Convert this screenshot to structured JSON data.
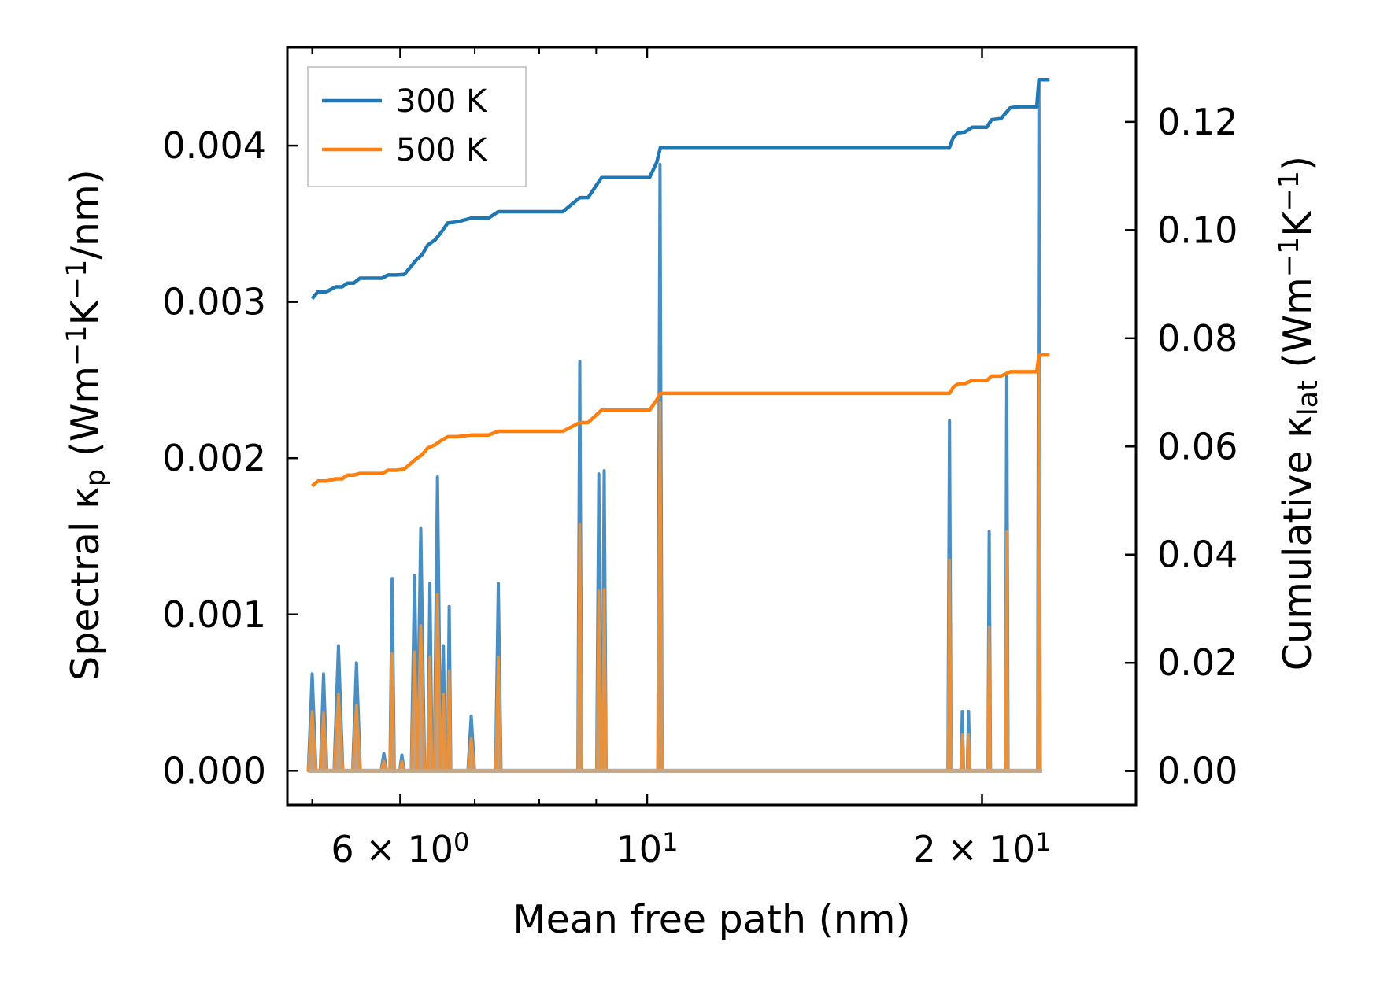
{
  "chart_data": {
    "type": "line",
    "x_scale": "log",
    "xlabel": "Mean free path (nm)",
    "ylabel_left": {
      "base": "Spectral κ",
      "sub": "p",
      "units_pre": " (Wm",
      "sup1": "−1",
      "units_mid": "K",
      "sup2": "−1",
      "units_post": "/nm)"
    },
    "ylabel_right": {
      "base": "Cumulative κ",
      "sub": "lat",
      "units_pre": " (Wm",
      "sup1": "−1",
      "units_mid": "K",
      "sup2": "−1",
      "units_post": ")"
    },
    "xlim": [
      4.75,
      27.5
    ],
    "ylim_left": [
      -0.00022,
      0.00463
    ],
    "ylim_right": [
      -0.0063,
      0.1338
    ],
    "x_ticks": [
      {
        "value": 6,
        "mantissa": "6",
        "times": "×",
        "base": "10",
        "exp": "0"
      },
      {
        "value": 10,
        "mantissa": "",
        "times": "",
        "base": "10",
        "exp": "1"
      },
      {
        "value": 20,
        "mantissa": "2",
        "times": "×",
        "base": "10",
        "exp": "1"
      }
    ],
    "x_minor_ticks": [
      5,
      7,
      8,
      9
    ],
    "y_left_ticks": [
      {
        "value": 0.0,
        "label": "0.000"
      },
      {
        "value": 0.001,
        "label": "0.001"
      },
      {
        "value": 0.002,
        "label": "0.002"
      },
      {
        "value": 0.003,
        "label": "0.003"
      },
      {
        "value": 0.004,
        "label": "0.004"
      }
    ],
    "y_right_ticks": [
      {
        "value": 0.0,
        "label": "0.00"
      },
      {
        "value": 0.02,
        "label": "0.02"
      },
      {
        "value": 0.04,
        "label": "0.04"
      },
      {
        "value": 0.06,
        "label": "0.06"
      },
      {
        "value": 0.08,
        "label": "0.08"
      },
      {
        "value": 0.1,
        "label": "0.10"
      },
      {
        "value": 0.12,
        "label": "0.12"
      }
    ],
    "legend": {
      "location": "upper-left",
      "entries": [
        "300 K",
        "500 K"
      ]
    },
    "colors": {
      "300 K": "#1f77b4",
      "500 K": "#ff7f0e",
      "spectral_300": "#4a8fc4",
      "spectral_500": "#e8913c",
      "spectral_500_fill": "#c59a74"
    },
    "series": [
      {
        "name": "300 K",
        "kind": "cumulative",
        "axis": "right",
        "x": [
          5.0,
          5.06,
          5.15,
          5.25,
          5.32,
          5.38,
          5.45,
          5.52,
          5.58,
          5.78,
          5.85,
          5.95,
          6.05,
          6.12,
          6.2,
          6.28,
          6.35,
          6.45,
          6.52,
          6.62,
          6.75,
          6.95,
          7.2,
          7.35,
          7.6,
          7.9,
          8.4,
          8.7,
          8.85,
          9.1,
          9.4,
          9.8,
          10.05,
          10.2,
          10.28,
          10.4,
          12.5,
          15.0,
          17.5,
          18.7,
          18.85,
          19.05,
          19.3,
          19.6,
          20.2,
          20.4,
          20.8,
          21.2,
          21.6,
          22.4,
          22.5,
          23.0
        ],
        "values": [
          0.0873,
          0.0886,
          0.0886,
          0.0895,
          0.0895,
          0.0902,
          0.0902,
          0.0911,
          0.0911,
          0.0911,
          0.0917,
          0.0917,
          0.0918,
          0.093,
          0.0944,
          0.0955,
          0.0972,
          0.0982,
          0.0994,
          0.1013,
          0.1015,
          0.1022,
          0.1022,
          0.1034,
          0.1034,
          0.1034,
          0.1034,
          0.106,
          0.106,
          0.1097,
          0.1097,
          0.1097,
          0.1097,
          0.1125,
          0.1153,
          0.1153,
          0.1153,
          0.1153,
          0.1153,
          0.1153,
          0.1172,
          0.118,
          0.1181,
          0.119,
          0.119,
          0.1204,
          0.1206,
          0.1226,
          0.1228,
          0.1228,
          0.1278,
          0.1278
        ]
      },
      {
        "name": "500 K",
        "kind": "cumulative",
        "axis": "right",
        "x": [
          5.0,
          5.06,
          5.15,
          5.25,
          5.32,
          5.38,
          5.45,
          5.52,
          5.58,
          5.78,
          5.85,
          5.95,
          6.05,
          6.12,
          6.2,
          6.28,
          6.35,
          6.45,
          6.52,
          6.62,
          6.75,
          6.95,
          7.2,
          7.35,
          7.6,
          7.9,
          8.4,
          8.7,
          8.85,
          9.1,
          9.4,
          9.8,
          10.05,
          10.2,
          10.28,
          10.4,
          12.5,
          15.0,
          17.5,
          18.7,
          18.85,
          19.05,
          19.3,
          19.6,
          20.2,
          20.4,
          20.8,
          21.2,
          21.6,
          22.4,
          22.5,
          23.0
        ],
        "values": [
          0.0527,
          0.0536,
          0.0536,
          0.054,
          0.054,
          0.0547,
          0.0547,
          0.055,
          0.055,
          0.055,
          0.0556,
          0.0556,
          0.0558,
          0.0567,
          0.0577,
          0.0585,
          0.0597,
          0.0603,
          0.061,
          0.0618,
          0.0618,
          0.0621,
          0.0621,
          0.0628,
          0.0628,
          0.0628,
          0.0628,
          0.0644,
          0.0644,
          0.0667,
          0.0667,
          0.0667,
          0.0667,
          0.0686,
          0.0698,
          0.0698,
          0.0698,
          0.0698,
          0.0698,
          0.0698,
          0.071,
          0.0716,
          0.0716,
          0.0722,
          0.0722,
          0.073,
          0.073,
          0.0738,
          0.0738,
          0.0738,
          0.0769,
          0.0769
        ]
      },
      {
        "name": "300 K",
        "kind": "spectral",
        "axis": "left",
        "peaks": [
          {
            "x": 5.0,
            "w": 0.035,
            "y": 0.00062
          },
          {
            "x": 5.12,
            "w": 0.03,
            "y": 0.00062
          },
          {
            "x": 5.28,
            "w": 0.04,
            "y": 0.0008
          },
          {
            "x": 5.48,
            "w": 0.035,
            "y": 0.00069
          },
          {
            "x": 5.8,
            "w": 0.025,
            "y": 0.00011
          },
          {
            "x": 5.9,
            "w": 0.02,
            "y": 0.00123
          },
          {
            "x": 6.02,
            "w": 0.02,
            "y": 0.0001
          },
          {
            "x": 6.18,
            "w": 0.03,
            "y": 0.00125
          },
          {
            "x": 6.26,
            "w": 0.035,
            "y": 0.00155
          },
          {
            "x": 6.38,
            "w": 0.02,
            "y": 0.0012
          },
          {
            "x": 6.48,
            "w": 0.03,
            "y": 0.00188
          },
          {
            "x": 6.56,
            "w": 0.02,
            "y": 0.0008
          },
          {
            "x": 6.64,
            "w": 0.015,
            "y": 0.00105
          },
          {
            "x": 6.95,
            "w": 0.03,
            "y": 0.00035
          },
          {
            "x": 7.35,
            "w": 0.025,
            "y": 0.0012
          },
          {
            "x": 8.7,
            "w": 0.018,
            "y": 0.00262
          },
          {
            "x": 9.05,
            "w": 0.02,
            "y": 0.0019
          },
          {
            "x": 9.15,
            "w": 0.018,
            "y": 0.00192
          },
          {
            "x": 10.27,
            "w": 0.02,
            "y": 0.00388
          },
          {
            "x": 18.7,
            "w": 0.015,
            "y": 0.00224
          },
          {
            "x": 19.2,
            "w": 0.012,
            "y": 0.00038
          },
          {
            "x": 19.45,
            "w": 0.012,
            "y": 0.00038
          },
          {
            "x": 20.3,
            "w": 0.012,
            "y": 0.00153
          },
          {
            "x": 21.05,
            "w": 0.012,
            "y": 0.00253
          },
          {
            "x": 22.5,
            "w": 0.012,
            "y": 0.0044
          }
        ]
      },
      {
        "name": "500 K",
        "kind": "spectral",
        "axis": "left",
        "peaks": [
          {
            "x": 5.0,
            "w": 0.035,
            "y": 0.00038
          },
          {
            "x": 5.12,
            "w": 0.03,
            "y": 0.00037
          },
          {
            "x": 5.28,
            "w": 0.04,
            "y": 0.00049
          },
          {
            "x": 5.48,
            "w": 0.035,
            "y": 0.00042
          },
          {
            "x": 5.8,
            "w": 0.025,
            "y": 6e-05
          },
          {
            "x": 5.9,
            "w": 0.02,
            "y": 0.00075
          },
          {
            "x": 6.02,
            "w": 0.02,
            "y": 6e-05
          },
          {
            "x": 6.18,
            "w": 0.03,
            "y": 0.00076
          },
          {
            "x": 6.26,
            "w": 0.035,
            "y": 0.00093
          },
          {
            "x": 6.38,
            "w": 0.02,
            "y": 0.00073
          },
          {
            "x": 6.48,
            "w": 0.03,
            "y": 0.00113
          },
          {
            "x": 6.56,
            "w": 0.02,
            "y": 0.00049
          },
          {
            "x": 6.64,
            "w": 0.015,
            "y": 0.00064
          },
          {
            "x": 6.95,
            "w": 0.03,
            "y": 0.00021
          },
          {
            "x": 7.35,
            "w": 0.025,
            "y": 0.00073
          },
          {
            "x": 8.7,
            "w": 0.018,
            "y": 0.00158
          },
          {
            "x": 9.05,
            "w": 0.02,
            "y": 0.00115
          },
          {
            "x": 9.15,
            "w": 0.018,
            "y": 0.00116
          },
          {
            "x": 10.27,
            "w": 0.02,
            "y": 0.00236
          },
          {
            "x": 18.7,
            "w": 0.015,
            "y": 0.00135
          },
          {
            "x": 19.2,
            "w": 0.012,
            "y": 0.00023
          },
          {
            "x": 19.45,
            "w": 0.012,
            "y": 0.00023
          },
          {
            "x": 20.3,
            "w": 0.012,
            "y": 0.00092
          },
          {
            "x": 21.05,
            "w": 0.012,
            "y": 0.00153
          },
          {
            "x": 22.5,
            "w": 0.012,
            "y": 0.00265
          }
        ]
      }
    ]
  }
}
